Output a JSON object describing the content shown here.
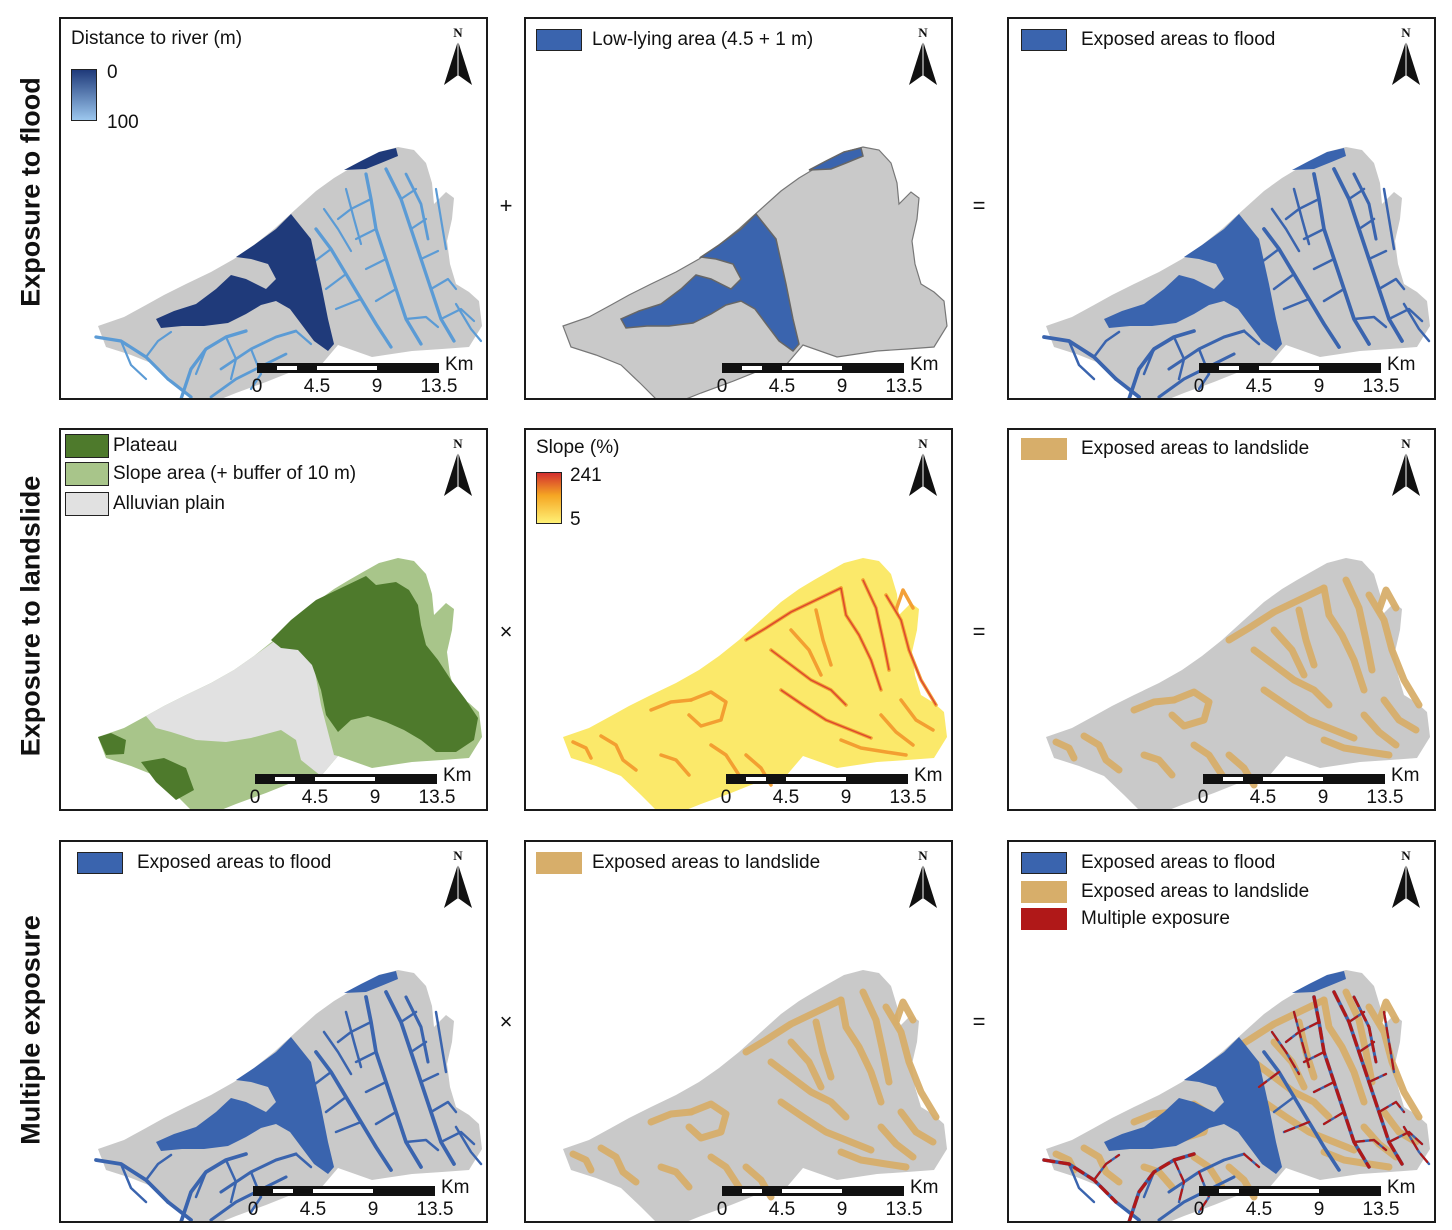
{
  "row_labels": [
    "Exposure to flood",
    "Exposure to landslide",
    "Multiple exposure"
  ],
  "operators": [
    "+",
    "=",
    "×",
    "=",
    "×",
    "="
  ],
  "north_label": "N",
  "scale": {
    "unit": "Km",
    "ticks": [
      "0",
      "4.5",
      "9",
      "13.5"
    ]
  },
  "colors": {
    "land_gray": "#c9c9c9",
    "flood_blue": "#3a64ae",
    "river_light_blue": "#5b9bd5",
    "dark_navy": "#1f3a7a",
    "landslide_tan": "#d7ae6a",
    "multiple_red": "#b01818",
    "plateau_green": "#4e7a2c",
    "slope_green": "#a8c58a",
    "alluvial_gray": "#e1e1e1",
    "slope_low": "#fff176",
    "slope_high": "#d32f2f"
  },
  "panels": [
    {
      "id": "distance-to-river",
      "legend_title": "Distance to river (m)",
      "gradient_max": "0",
      "gradient_min": "100"
    },
    {
      "id": "low-lying-area",
      "legend_label": "Low-lying area (4.5 + 1 m)"
    },
    {
      "id": "exposed-flood",
      "legend_label": "Exposed areas to flood"
    },
    {
      "id": "landuse-categories",
      "legend_items": [
        "Plateau",
        "Slope area (+ buffer of 10 m)",
        "Alluvian plain"
      ]
    },
    {
      "id": "slope-percent",
      "legend_title": "Slope (%)",
      "gradient_max": "241",
      "gradient_min": "5"
    },
    {
      "id": "exposed-landslide",
      "legend_label": "Exposed areas to landslide"
    },
    {
      "id": "flood-input",
      "legend_label": "Exposed areas to flood"
    },
    {
      "id": "landslide-input",
      "legend_label": "Exposed areas to landslide"
    },
    {
      "id": "multiple-exposure",
      "legend_items": [
        "Exposed areas to flood",
        "Exposed areas to landslide",
        "Multiple exposure"
      ]
    }
  ]
}
